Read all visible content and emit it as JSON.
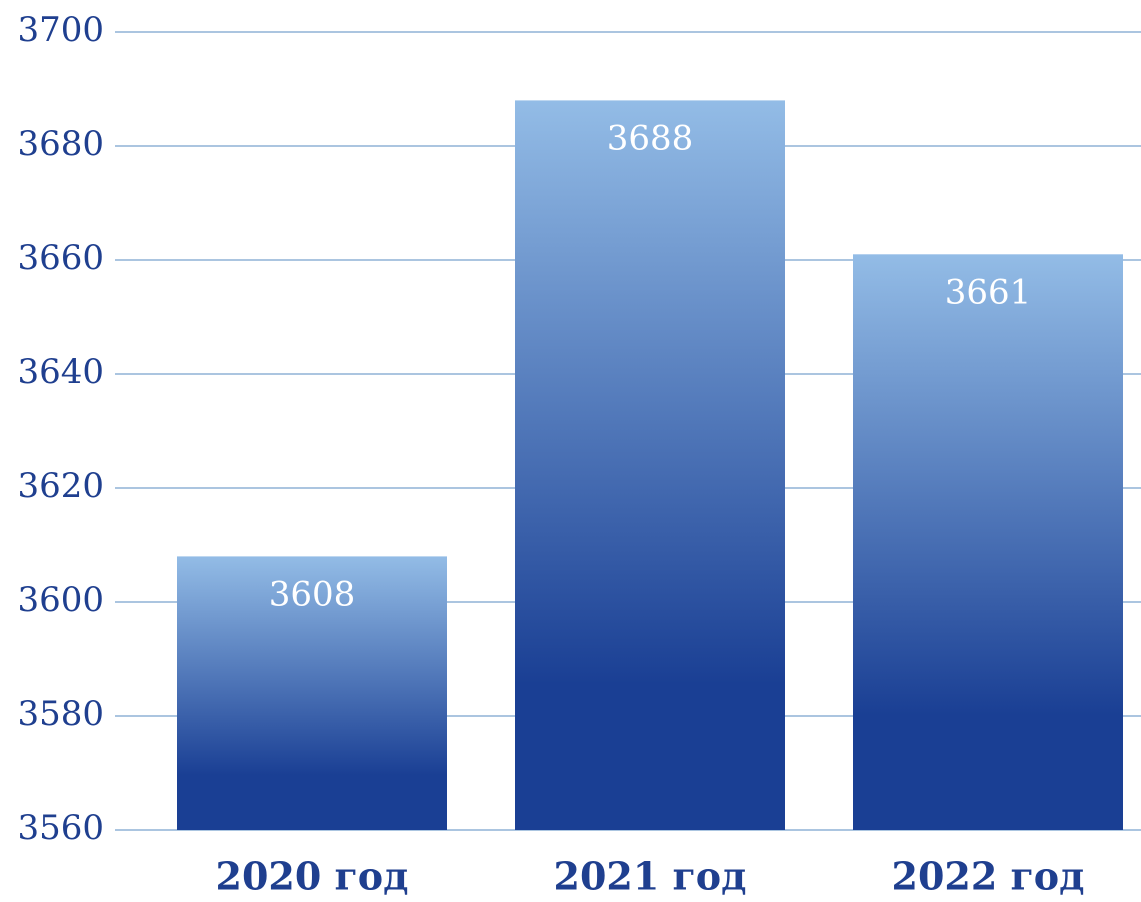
{
  "chart_data": {
    "type": "bar",
    "categories": [
      "2020 год",
      "2021 год",
      "2022 год"
    ],
    "values": [
      3608,
      3688,
      3661
    ],
    "color": "#1a3f94",
    "ylim": [
      3560,
      3700
    ],
    "yticks": [
      3560,
      3580,
      3600,
      3620,
      3640,
      3660,
      3680,
      3700
    ],
    "grid": true
  }
}
